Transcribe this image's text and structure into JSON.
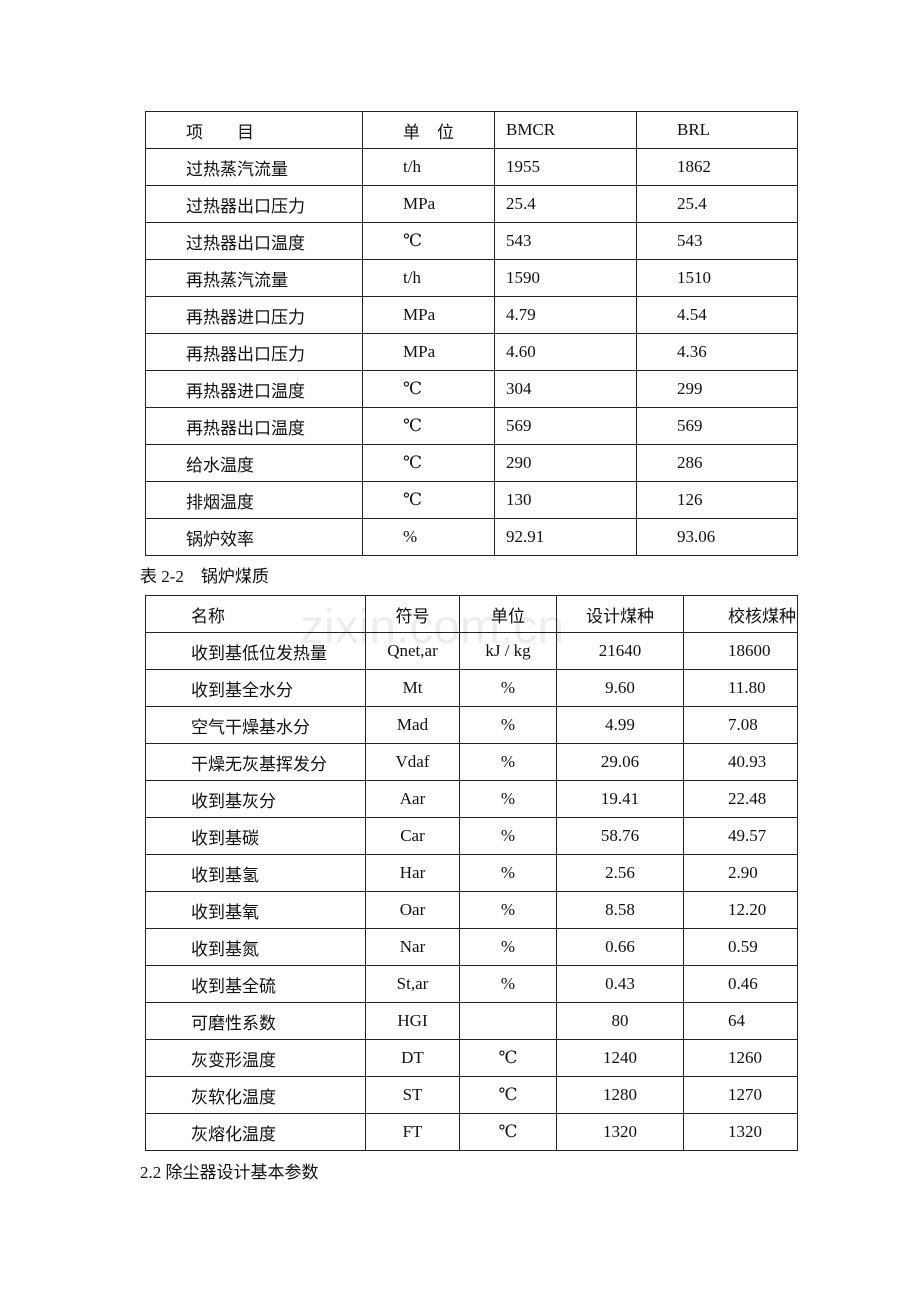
{
  "table1": {
    "header": [
      "项　　目",
      "单　位",
      "BMCR",
      "BRL"
    ],
    "rows": [
      [
        "过热蒸汽流量",
        "t/h",
        "1955",
        "1862"
      ],
      [
        "过热器出口压力",
        "MPa",
        "25.4",
        "25.4"
      ],
      [
        "过热器出口温度",
        "℃",
        "543",
        "543"
      ],
      [
        "再热蒸汽流量",
        "t/h",
        "1590",
        "1510"
      ],
      [
        "再热器进口压力",
        "MPa",
        "4.79",
        "4.54"
      ],
      [
        "再热器出口压力",
        "MPa",
        "4.60",
        "4.36"
      ],
      [
        "再热器进口温度",
        "℃",
        "304",
        "299"
      ],
      [
        "再热器出口温度",
        "℃",
        "569",
        "569"
      ],
      [
        "给水温度",
        "℃",
        "290",
        "286"
      ],
      [
        "排烟温度",
        "℃",
        "130",
        "126"
      ],
      [
        "锅炉效率",
        "%",
        "92.91",
        "93.06"
      ]
    ]
  },
  "caption": "表 2-2　锅炉煤质",
  "table2": {
    "header": [
      "名称",
      "符号",
      "单位",
      "设计煤种",
      "校核煤种"
    ],
    "rows": [
      [
        "收到基低位发热量",
        "Qnet,ar",
        "kJ / kg",
        "21640",
        "18600"
      ],
      [
        "收到基全水分",
        "Mt",
        "%",
        "9.60",
        "11.80"
      ],
      [
        "空气干燥基水分",
        "Mad",
        "%",
        "4.99",
        "7.08"
      ],
      [
        "干燥无灰基挥发分",
        "Vdaf",
        "%",
        "29.06",
        "40.93"
      ],
      [
        "收到基灰分",
        "Aar",
        "%",
        "19.41",
        "22.48"
      ],
      [
        "收到基碳",
        "Car",
        "%",
        "58.76",
        "49.57"
      ],
      [
        "收到基氢",
        "Har",
        "%",
        "2.56",
        "2.90"
      ],
      [
        "收到基氧",
        "Oar",
        "%",
        "8.58",
        "12.20"
      ],
      [
        "收到基氮",
        "Nar",
        "%",
        "0.66",
        "0.59"
      ],
      [
        "收到基全硫",
        "St,ar",
        "%",
        "0.43",
        "0.46"
      ],
      [
        "可磨性系数",
        "HGI",
        "",
        "80",
        "64"
      ],
      [
        "灰变形温度",
        "DT",
        "℃",
        "1240",
        "1260"
      ],
      [
        "灰软化温度",
        "ST",
        "℃",
        "1280",
        "1270"
      ],
      [
        "灰熔化温度",
        "FT",
        "℃",
        "1320",
        "1320"
      ]
    ]
  },
  "watermark": "zixin.com.cn",
  "footer": "2.2 除尘器设计基本参数"
}
